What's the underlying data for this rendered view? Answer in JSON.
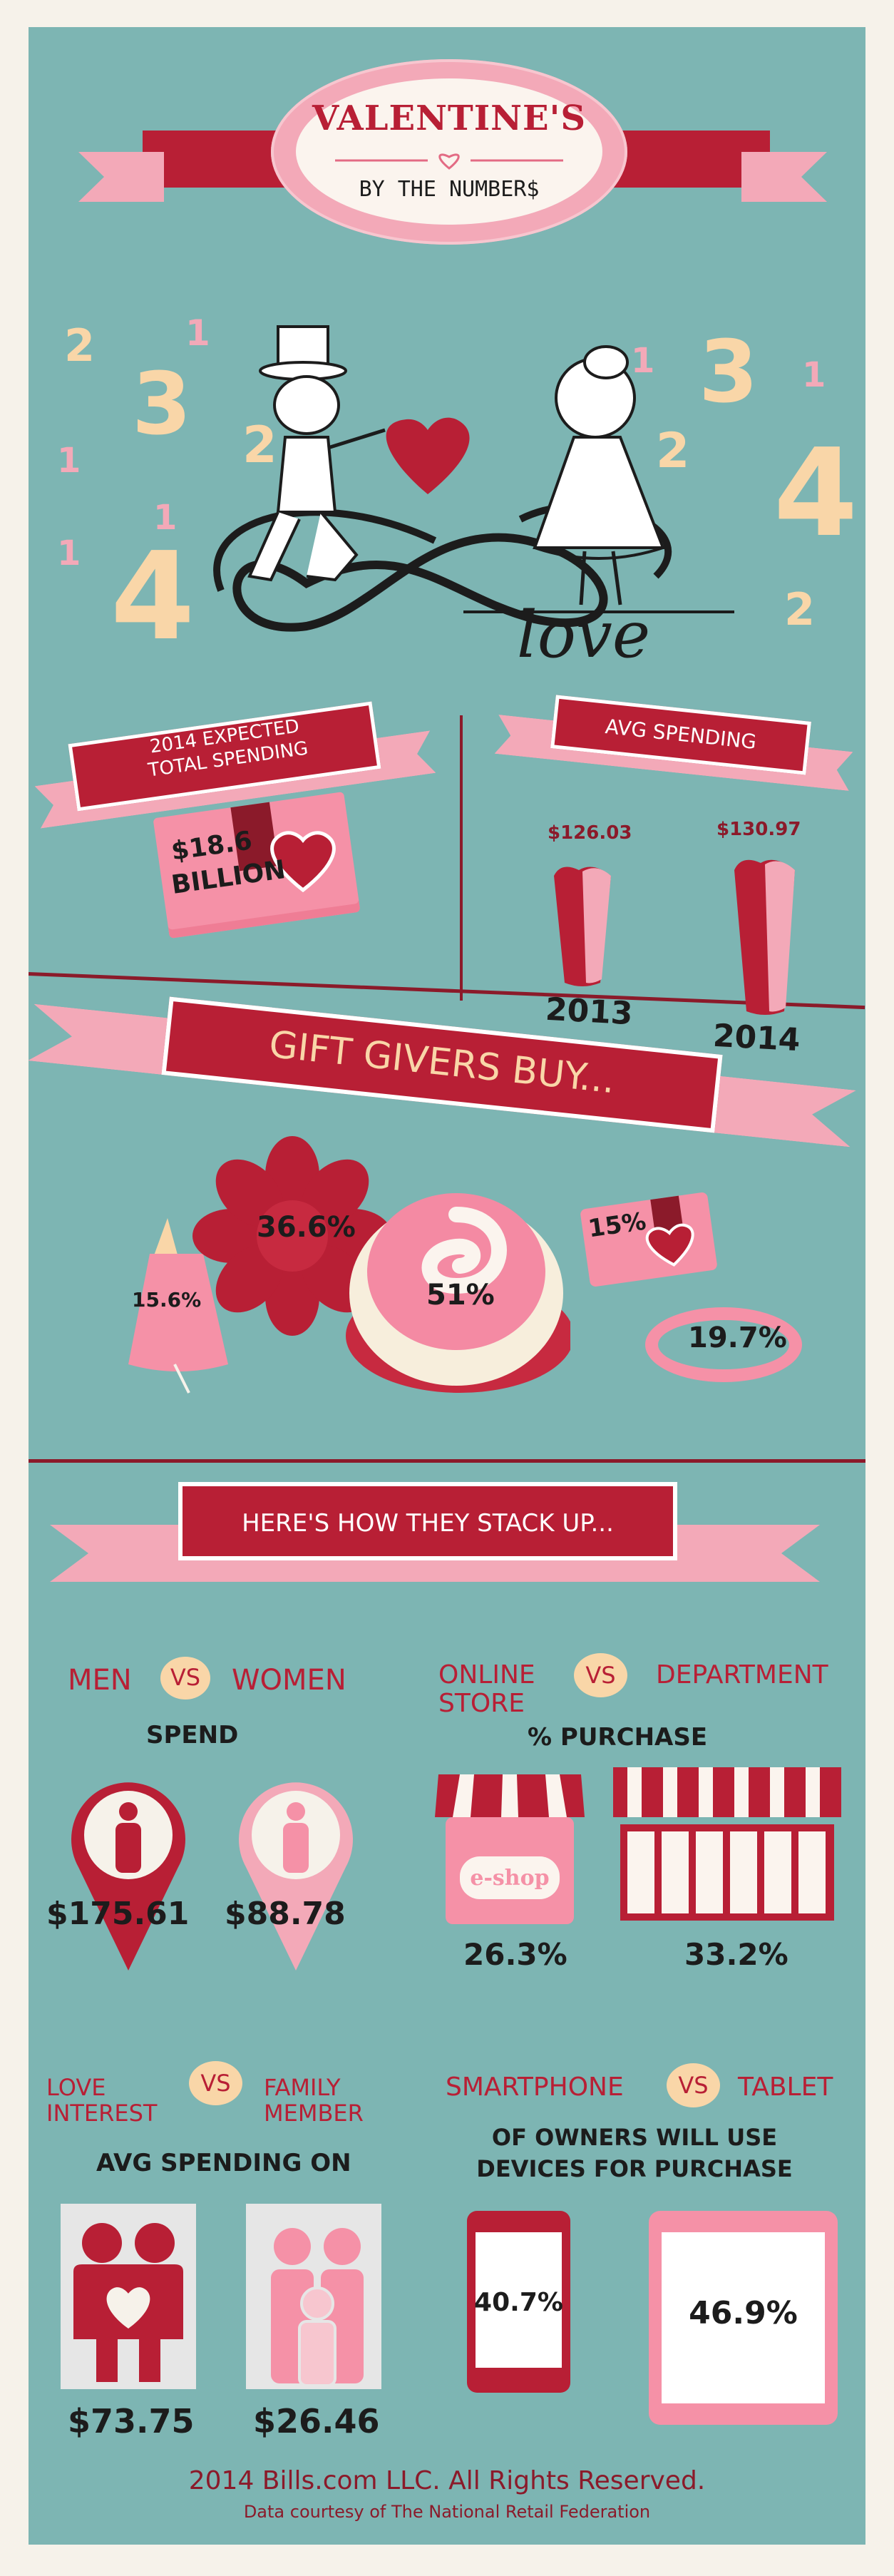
{
  "header": {
    "title": "VALENTINE'S",
    "subtitle": "BY THE NUMBER$"
  },
  "hero": {
    "love_word": "love",
    "decor_numbers": [
      "2",
      "1",
      "3",
      "2",
      "1",
      "1",
      "4",
      "1",
      "3",
      "2",
      "1",
      "1",
      "4",
      "2"
    ]
  },
  "total_spending": {
    "label_line1": "2014 EXPECTED",
    "label_line2": "TOTAL SPENDING",
    "value_line1": "$18.6",
    "value_line2": "BILLION"
  },
  "avg_spending": {
    "label": "AVG SPENDING",
    "items": [
      {
        "amount": "$126.03",
        "year": "2013"
      },
      {
        "amount": "$130.97",
        "year": "2014"
      }
    ]
  },
  "gifts": {
    "title": "GIFT GIVERS BUY...",
    "flowers": "36.6%",
    "candy": "51%",
    "clothing": "15.6%",
    "gift_card": "15%",
    "jewelry": "19.7%"
  },
  "stack": {
    "title": "HERE'S HOW THEY STACK UP...",
    "vs": "VS",
    "men_women": {
      "left": "MEN",
      "right": "WOMEN",
      "caption": "SPEND",
      "left_value": "$175.61",
      "right_value": "$88.78"
    },
    "online_store": {
      "left_line1": "ONLINE",
      "left_line2": "STORE",
      "right": "DEPARTMENT",
      "caption": "% PURCHASE",
      "eshop_label": "e-shop",
      "left_value": "26.3%",
      "right_value": "33.2%"
    },
    "love_family": {
      "left_line1": "LOVE",
      "left_line2": "INTEREST",
      "right_line1": "FAMILY",
      "right_line2": "MEMBER",
      "caption": "AVG SPENDING ON",
      "left_value": "$73.75",
      "right_value": "$26.46"
    },
    "phone_tablet": {
      "left": "SMARTPHONE",
      "right": "TABLET",
      "caption_line1": "OF OWNERS WILL USE",
      "caption_line2": "DEVICES FOR PURCHASE",
      "left_value": "40.7%",
      "right_value": "46.9%"
    }
  },
  "footer": {
    "copyright": "2014 Bills.com LLC. All Rights Reserved.",
    "source": "Data courtesy of The National Retail Federation"
  },
  "colors": {
    "background": "#7db5b3",
    "accent_red": "#b81f35",
    "accent_pink": "#f3a9b8",
    "cream": "#f9d6a8"
  }
}
